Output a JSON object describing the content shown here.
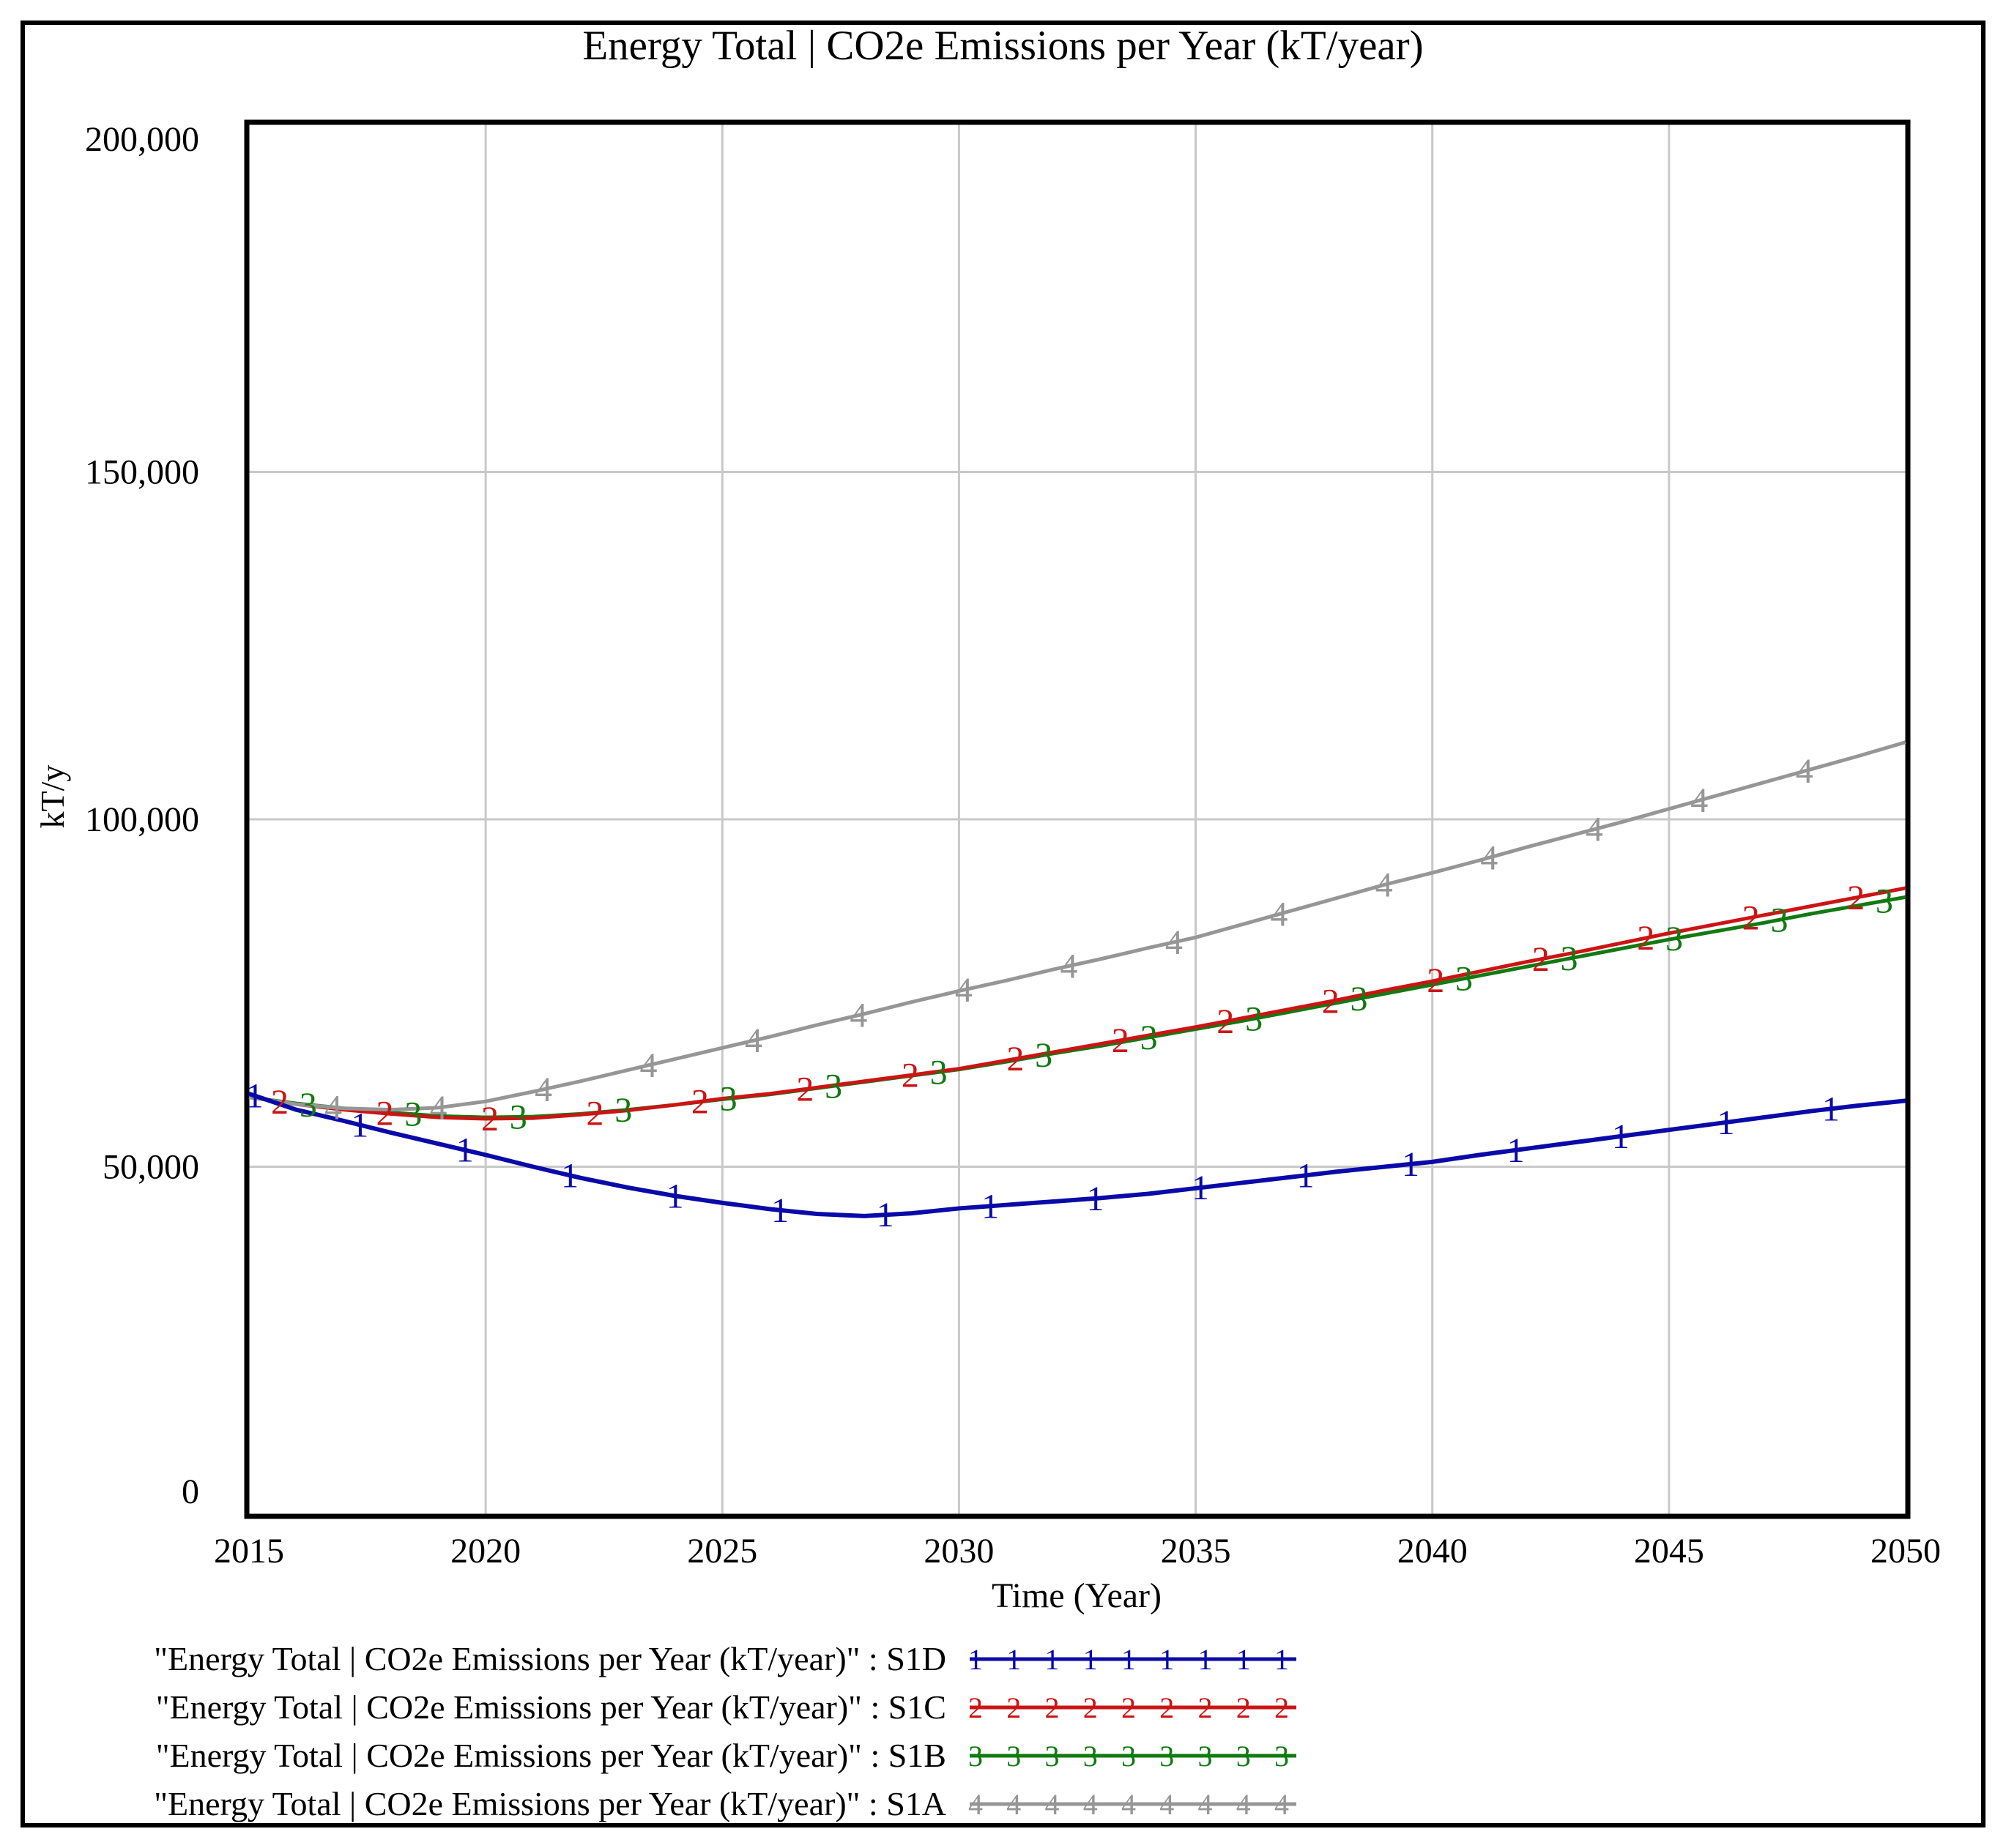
{
  "title": "Energy Total | CO2e Emissions per Year (kT/year)",
  "colors": {
    "blue_series": "#0A0AA8",
    "red_series": "#CC1414",
    "green_series": "#117A11",
    "gray_series": "#969696",
    "gridline": "#C8C8C8",
    "plot_border": "#000000",
    "background": "#FFFFFF",
    "text": "#000000"
  },
  "axes": {
    "x": {
      "title": "Time (Year)",
      "min": 2015,
      "max": 2050,
      "tick_step": 5,
      "tick_labels": [
        "2015",
        "2020",
        "2025",
        "2030",
        "2035",
        "2040",
        "2045",
        "2050"
      ],
      "tick_values": [
        2015,
        2020,
        2025,
        2030,
        2035,
        2040,
        2045,
        2050
      ]
    },
    "y": {
      "title": "kT/y",
      "min": 0,
      "max": 200000,
      "tick_labels": [
        "0",
        "50,000",
        "100,000",
        "150,000",
        "200,000"
      ],
      "tick_values": [
        0,
        50000,
        100000,
        150000,
        200000
      ]
    }
  },
  "legend": {
    "entries": [
      {
        "label": "\"Energy Total | CO2e Emissions per Year (kT/year)\" : S1D",
        "series": "S1D",
        "marker": "1",
        "color": "#0A0AA8"
      },
      {
        "label": "\"Energy Total | CO2e Emissions per Year (kT/year)\" : S1C",
        "series": "S1C",
        "marker": "2",
        "color": "#CC1414"
      },
      {
        "label": "\"Energy Total | CO2e Emissions per Year (kT/year)\" : S1B",
        "series": "S1B",
        "marker": "3",
        "color": "#117A11"
      },
      {
        "label": "\"Energy Total | CO2e Emissions per Year (kT/year)\" : S1A",
        "series": "S1A",
        "marker": "4",
        "color": "#969696"
      }
    ]
  },
  "chart_data": {
    "type": "line",
    "title": "Energy Total | CO2e Emissions per Year (kT/year)",
    "xlabel": "Time (Year)",
    "ylabel": "kT/y",
    "x_range": [
      2015,
      2050
    ],
    "y_range": [
      0,
      200000
    ],
    "grid": true,
    "legend_position": "bottom-left",
    "years": [
      2015,
      2016,
      2017,
      2018,
      2019,
      2020,
      2021,
      2022,
      2023,
      2024,
      2025,
      2026,
      2027,
      2028,
      2029,
      2030,
      2031,
      2032,
      2033,
      2034,
      2035,
      2036,
      2037,
      2038,
      2039,
      2040,
      2041,
      2042,
      2043,
      2044,
      2045,
      2046,
      2047,
      2048,
      2049,
      2050
    ],
    "marker_interval_years": 2.22,
    "series": [
      {
        "name": "\"Energy Total | CO2e Emissions per Year (kT/year)\" : S1B",
        "short": "S1B",
        "marker": "3",
        "color": "#117A11",
        "marker_phase": 2016.25,
        "values": [
          60000,
          59100,
          58400,
          57800,
          57300,
          57100,
          57200,
          57600,
          58200,
          58900,
          59700,
          60400,
          61300,
          62200,
          63100,
          64000,
          65100,
          66300,
          67400,
          68600,
          69800,
          71000,
          72300,
          73600,
          74900,
          76200,
          77500,
          78800,
          80100,
          81400,
          82700,
          83900,
          85100,
          86400,
          87600,
          88800
        ]
      },
      {
        "name": "\"Energy Total | CO2e Emissions per Year (kT/year)\" : S1C",
        "short": "S1C",
        "marker": "2",
        "color": "#CC1414",
        "marker_phase": 2015.65,
        "values": [
          60000,
          59000,
          58200,
          57600,
          57100,
          56900,
          57000,
          57500,
          58100,
          58900,
          59800,
          60500,
          61400,
          62300,
          63200,
          64100,
          65300,
          66500,
          67700,
          68900,
          70100,
          71400,
          72700,
          74000,
          75400,
          76700,
          78100,
          79500,
          80800,
          82200,
          83600,
          84900,
          86200,
          87500,
          88800,
          90100
        ]
      },
      {
        "name": "\"Energy Total | CO2e Emissions per Year (kT/year)\" : S1A",
        "short": "S1A",
        "marker": "4",
        "color": "#969696",
        "marker_phase": 2016.78,
        "values": [
          60000,
          59000,
          58400,
          58200,
          58500,
          59400,
          60800,
          62300,
          63900,
          65500,
          67100,
          68700,
          70400,
          72000,
          73700,
          75300,
          76800,
          78400,
          79900,
          81500,
          83000,
          84900,
          86800,
          88700,
          90600,
          92300,
          94100,
          96000,
          97800,
          99600,
          101500,
          103400,
          105300,
          107200,
          109100,
          111100
        ]
      },
      {
        "name": "\"Energy Total | CO2e Emissions per Year (kT/year)\" : S1D",
        "short": "S1D",
        "marker": "1",
        "color": "#0A0AA8",
        "marker_phase": 2015.12,
        "values": [
          60500,
          58200,
          56600,
          54900,
          53300,
          51700,
          50000,
          48400,
          47000,
          45800,
          44800,
          43900,
          43200,
          42900,
          43300,
          44000,
          44500,
          45000,
          45500,
          46100,
          46900,
          47700,
          48500,
          49300,
          50000,
          50700,
          51700,
          52600,
          53500,
          54400,
          55300,
          56200,
          57100,
          58000,
          58800,
          59500
        ]
      }
    ]
  }
}
